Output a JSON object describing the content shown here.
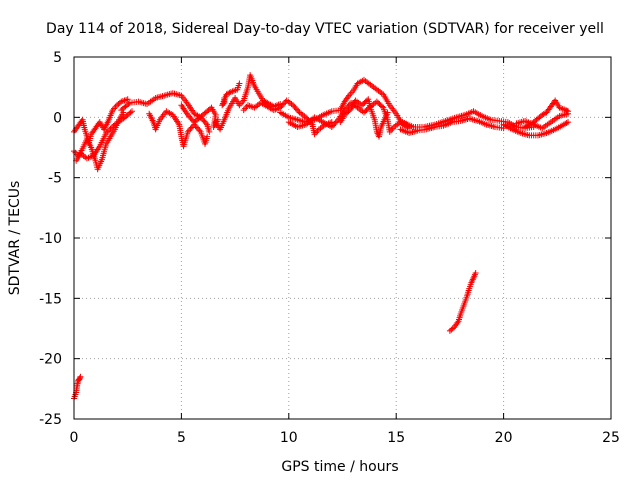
{
  "chart_data": {
    "type": "scatter",
    "title": "Day 114 of 2018, Sidereal Day-to-day VTEC variation (SDTVAR) for receiver yell",
    "xlabel": "GPS time / hours",
    "ylabel": "SDTVAR / TECUs",
    "xlim": [
      0,
      25
    ],
    "ylim": [
      -25,
      5
    ],
    "xticks": [
      "0",
      "5",
      "10",
      "15",
      "20",
      "25"
    ],
    "yticks": [
      "5",
      "0",
      "-5",
      "-10",
      "-15",
      "-20",
      "-25"
    ],
    "grid": true,
    "marker": "plus",
    "series": [
      {
        "name": "SDTVAR",
        "color": "#ff0000",
        "segments": [
          {
            "name": "arc-00-03-lower",
            "points": [
              [
                0.0,
                -2.8
              ],
              [
                0.2,
                -3.2
              ],
              [
                0.4,
                -2.6
              ],
              [
                0.6,
                -1.8
              ],
              [
                0.8,
                -2.5
              ],
              [
                1.0,
                -3.6
              ],
              [
                1.1,
                -4.3
              ],
              [
                1.3,
                -3.5
              ],
              [
                1.5,
                -2.2
              ],
              [
                1.7,
                -1.6
              ],
              [
                1.9,
                -1.0
              ],
              [
                2.1,
                -0.2
              ],
              [
                2.3,
                0.4
              ]
            ]
          },
          {
            "name": "arc-00-03-upper",
            "points": [
              [
                0.0,
                -1.2
              ],
              [
                0.2,
                -0.7
              ],
              [
                0.4,
                -0.2
              ],
              [
                0.5,
                -1.0
              ],
              [
                0.7,
                -2.1
              ],
              [
                0.8,
                -1.4
              ],
              [
                1.0,
                -0.9
              ],
              [
                1.2,
                -0.4
              ],
              [
                1.4,
                -1.0
              ],
              [
                1.6,
                -0.3
              ],
              [
                1.8,
                0.6
              ],
              [
                2.0,
                1.0
              ],
              [
                2.2,
                1.3
              ],
              [
                2.5,
                1.5
              ]
            ]
          },
          {
            "name": "arc-00-02-mid",
            "points": [
              [
                0.1,
                -3.6
              ],
              [
                0.3,
                -3.0
              ],
              [
                0.6,
                -3.4
              ],
              [
                0.9,
                -3.2
              ],
              [
                1.2,
                -2.4
              ],
              [
                1.5,
                -1.3
              ],
              [
                1.9,
                -0.6
              ],
              [
                2.3,
                -0.1
              ],
              [
                2.7,
                0.5
              ]
            ]
          },
          {
            "name": "arc-02-05",
            "points": [
              [
                2.2,
                0.6
              ],
              [
                2.6,
                1.2
              ],
              [
                3.0,
                1.3
              ],
              [
                3.4,
                1.1
              ],
              [
                3.8,
                1.6
              ],
              [
                4.2,
                1.8
              ],
              [
                4.6,
                2.0
              ],
              [
                5.0,
                1.8
              ],
              [
                5.3,
                1.1
              ],
              [
                5.6,
                0.3
              ],
              [
                5.9,
                0.0
              ],
              [
                6.2,
                -0.6
              ],
              [
                6.3,
                -1.2
              ]
            ]
          },
          {
            "name": "arc-03-05-dip",
            "points": [
              [
                3.5,
                0.3
              ],
              [
                3.7,
                -0.4
              ],
              [
                3.8,
                -1.0
              ],
              [
                4.0,
                -0.2
              ],
              [
                4.3,
                0.5
              ],
              [
                4.6,
                0.2
              ],
              [
                4.9,
                -0.6
              ],
              [
                5.0,
                -1.6
              ],
              [
                5.1,
                -2.4
              ],
              [
                5.3,
                -1.2
              ],
              [
                5.6,
                -0.6
              ],
              [
                5.9,
                -1.2
              ],
              [
                6.1,
                -2.2
              ],
              [
                6.2,
                -1.6
              ]
            ]
          },
          {
            "name": "arc-05-07",
            "points": [
              [
                5.0,
                1.0
              ],
              [
                5.3,
                0.2
              ],
              [
                5.6,
                -0.4
              ],
              [
                6.0,
                0.2
              ],
              [
                6.4,
                0.8
              ],
              [
                6.6,
                0.2
              ],
              [
                6.5,
                -0.8
              ],
              [
                6.7,
                -0.2
              ]
            ]
          },
          {
            "name": "arc-07-09",
            "points": [
              [
                6.6,
                -0.4
              ],
              [
                6.8,
                -1.0
              ],
              [
                7.0,
                -0.2
              ],
              [
                7.2,
                0.7
              ],
              [
                7.5,
                1.6
              ],
              [
                7.7,
                1.0
              ],
              [
                7.9,
                1.4
              ],
              [
                8.1,
                2.5
              ],
              [
                8.2,
                3.5
              ],
              [
                8.4,
                2.6
              ],
              [
                8.6,
                2.0
              ],
              [
                8.8,
                1.4
              ],
              [
                9.0,
                1.2
              ],
              [
                9.3,
                0.9
              ],
              [
                9.6,
                1.1
              ]
            ]
          },
          {
            "name": "arc-07-09-low",
            "points": [
              [
                7.9,
                0.6
              ],
              [
                8.1,
                1.0
              ],
              [
                8.4,
                0.8
              ],
              [
                8.7,
                1.2
              ],
              [
                9.0,
                0.9
              ],
              [
                9.3,
                0.6
              ],
              [
                9.6,
                0.8
              ],
              [
                9.9,
                1.4
              ],
              [
                10.2,
                1.0
              ],
              [
                10.5,
                0.4
              ],
              [
                10.8,
                0.0
              ],
              [
                11.1,
                -0.6
              ],
              [
                11.2,
                -1.4
              ],
              [
                11.4,
                -1.0
              ],
              [
                11.7,
                -0.6
              ],
              [
                12.0,
                -0.4
              ]
            ]
          },
          {
            "name": "arc-07-ticks",
            "points": [
              [
                7.0,
                1.6
              ],
              [
                7.0,
                1.2
              ],
              [
                6.9,
                1.0
              ],
              [
                7.1,
                1.9
              ],
              [
                7.3,
                2.1
              ],
              [
                7.6,
                2.3
              ],
              [
                7.7,
                2.8
              ]
            ]
          },
          {
            "name": "arc-10-13",
            "points": [
              [
                9.6,
                0.4
              ],
              [
                10.0,
                0.0
              ],
              [
                10.4,
                -0.2
              ],
              [
                10.8,
                -0.4
              ],
              [
                11.2,
                -0.2
              ],
              [
                11.6,
                0.2
              ],
              [
                12.0,
                0.5
              ],
              [
                12.4,
                0.6
              ],
              [
                12.6,
                1.3
              ],
              [
                12.8,
                1.8
              ],
              [
                13.0,
                2.2
              ],
              [
                13.2,
                2.8
              ],
              [
                13.5,
                3.1
              ],
              [
                13.8,
                2.7
              ],
              [
                14.1,
                2.3
              ],
              [
                14.4,
                1.9
              ],
              [
                14.7,
                1.0
              ],
              [
                15.0,
                0.3
              ],
              [
                15.3,
                -0.6
              ],
              [
                15.6,
                -0.9
              ]
            ]
          },
          {
            "name": "arc-10-13-low",
            "points": [
              [
                10.0,
                -0.4
              ],
              [
                10.4,
                -0.8
              ],
              [
                10.8,
                -0.6
              ],
              [
                11.2,
                0.0
              ],
              [
                11.6,
                -0.4
              ],
              [
                12.0,
                -0.8
              ],
              [
                12.3,
                -0.2
              ],
              [
                12.6,
                0.6
              ],
              [
                12.9,
                1.2
              ],
              [
                13.2,
                0.8
              ],
              [
                13.5,
                0.4
              ],
              [
                13.8,
                0.9
              ],
              [
                14.1,
                1.3
              ],
              [
                14.4,
                0.8
              ],
              [
                14.6,
                -0.2
              ],
              [
                14.7,
                -1.2
              ],
              [
                14.9,
                -0.8
              ],
              [
                15.2,
                -0.4
              ],
              [
                15.5,
                -0.6
              ]
            ]
          },
          {
            "name": "arc-13-15-dips",
            "points": [
              [
                12.4,
                -0.4
              ],
              [
                12.6,
                0.2
              ],
              [
                12.9,
                0.7
              ],
              [
                13.1,
                1.4
              ],
              [
                13.4,
                1.0
              ],
              [
                13.7,
                1.5
              ],
              [
                13.8,
                0.8
              ],
              [
                14.0,
                -0.2
              ],
              [
                14.1,
                -1.2
              ],
              [
                14.2,
                -1.6
              ],
              [
                14.3,
                -0.8
              ],
              [
                14.6,
                0.4
              ]
            ]
          },
          {
            "name": "arc-15-20",
            "points": [
              [
                15.3,
                -0.4
              ],
              [
                15.8,
                -0.8
              ],
              [
                16.3,
                -0.8
              ],
              [
                16.8,
                -0.6
              ],
              [
                17.3,
                -0.3
              ],
              [
                17.8,
                0.0
              ],
              [
                18.2,
                0.2
              ],
              [
                18.6,
                0.5
              ],
              [
                19.0,
                0.1
              ],
              [
                19.4,
                -0.2
              ],
              [
                19.8,
                -0.3
              ],
              [
                20.2,
                -0.4
              ],
              [
                20.6,
                -0.8
              ],
              [
                21.0,
                -0.9
              ],
              [
                21.4,
                -0.8
              ]
            ]
          },
          {
            "name": "arc-15-20-low",
            "points": [
              [
                15.2,
                -1.0
              ],
              [
                15.6,
                -1.3
              ],
              [
                16.0,
                -1.1
              ],
              [
                16.4,
                -1.0
              ],
              [
                16.8,
                -0.8
              ],
              [
                17.2,
                -0.7
              ],
              [
                17.6,
                -0.4
              ],
              [
                18.0,
                -0.3
              ],
              [
                18.4,
                -0.1
              ],
              [
                18.8,
                -0.3
              ],
              [
                19.2,
                -0.6
              ],
              [
                19.6,
                -0.8
              ],
              [
                20.0,
                -0.9
              ]
            ]
          },
          {
            "name": "arc-20-23",
            "points": [
              [
                20.0,
                -0.6
              ],
              [
                20.4,
                -1.0
              ],
              [
                20.8,
                -1.3
              ],
              [
                21.2,
                -1.5
              ],
              [
                21.6,
                -1.5
              ],
              [
                22.0,
                -1.3
              ],
              [
                22.4,
                -1.0
              ],
              [
                22.8,
                -0.6
              ],
              [
                23.0,
                -0.4
              ]
            ]
          },
          {
            "name": "arc-20-23-up",
            "points": [
              [
                21.0,
                -0.8
              ],
              [
                21.4,
                -0.4
              ],
              [
                21.8,
                0.2
              ],
              [
                22.0,
                0.4
              ],
              [
                22.2,
                0.9
              ],
              [
                22.4,
                1.4
              ],
              [
                22.6,
                0.8
              ],
              [
                22.9,
                0.6
              ],
              [
                23.0,
                0.5
              ]
            ]
          },
          {
            "name": "arc-20-23-mid",
            "points": [
              [
                20.6,
                -0.5
              ],
              [
                21.0,
                -0.3
              ],
              [
                21.4,
                -0.6
              ],
              [
                21.8,
                -0.9
              ],
              [
                22.2,
                -0.4
              ],
              [
                22.6,
                0.1
              ],
              [
                23.0,
                0.3
              ]
            ]
          },
          {
            "name": "arc-00-late",
            "points": [
              [
                0.0,
                -23.3
              ],
              [
                0.1,
                -22.8
              ],
              [
                0.15,
                -22.2
              ],
              [
                0.2,
                -21.8
              ],
              [
                0.25,
                -21.7
              ],
              [
                0.3,
                -21.5
              ]
            ]
          },
          {
            "name": "arc-17-18",
            "points": [
              [
                17.5,
                -17.7
              ],
              [
                17.7,
                -17.4
              ],
              [
                17.9,
                -16.9
              ],
              [
                18.0,
                -16.3
              ],
              [
                18.1,
                -15.8
              ],
              [
                18.2,
                -15.3
              ],
              [
                18.3,
                -14.8
              ],
              [
                18.4,
                -14.2
              ],
              [
                18.5,
                -13.7
              ],
              [
                18.6,
                -13.3
              ],
              [
                18.7,
                -12.9
              ]
            ]
          }
        ]
      }
    ]
  }
}
